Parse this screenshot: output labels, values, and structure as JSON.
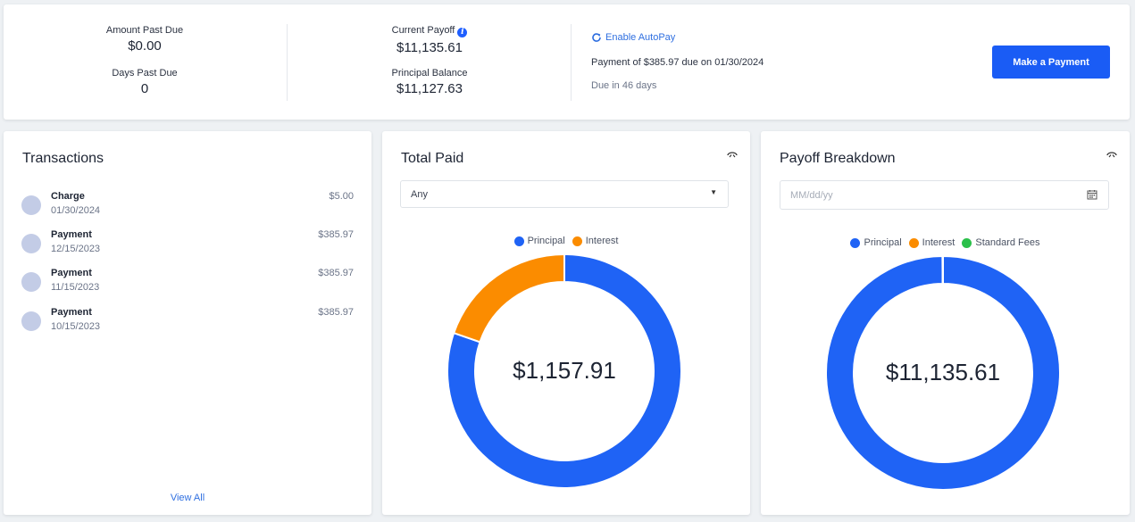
{
  "summary": {
    "amount_past_due_label": "Amount Past Due",
    "amount_past_due": "$0.00",
    "days_past_due_label": "Days Past Due",
    "days_past_due": "0",
    "current_payoff_label": "Current Payoff",
    "current_payoff": "$11,135.61",
    "principal_balance_label": "Principal Balance",
    "principal_balance": "$11,127.63",
    "autopay_label": "Enable AutoPay",
    "payment_note": "Payment of $385.97 due on 01/30/2024",
    "due_in": "Due in 46 days",
    "make_payment_label": "Make a Payment"
  },
  "transactions": {
    "title": "Transactions",
    "items": [
      {
        "type": "Charge",
        "date": "01/30/2024",
        "amount": "$5.00"
      },
      {
        "type": "Payment",
        "date": "12/15/2023",
        "amount": "$385.97"
      },
      {
        "type": "Payment",
        "date": "11/15/2023",
        "amount": "$385.97"
      },
      {
        "type": "Payment",
        "date": "10/15/2023",
        "amount": "$385.97"
      }
    ],
    "view_all_label": "View All"
  },
  "total_paid": {
    "title": "Total Paid",
    "filter_value": "Any",
    "center_label": "$1,157.91",
    "legend": [
      {
        "name": "Principal",
        "color": "#1f63f5"
      },
      {
        "name": "Interest",
        "color": "#fb8c00"
      }
    ],
    "slices": [
      {
        "name": "Principal",
        "value": 0.803,
        "color": "#1f63f5"
      },
      {
        "name": "Interest",
        "value": 0.197,
        "color": "#fb8c00"
      }
    ]
  },
  "payoff_breakdown": {
    "title": "Payoff Breakdown",
    "date_placeholder": "MM/dd/yy",
    "center_label": "$11,135.61",
    "legend": [
      {
        "name": "Principal",
        "color": "#1f63f5"
      },
      {
        "name": "Interest",
        "color": "#fb8c00"
      },
      {
        "name": "Standard Fees",
        "color": "#2bc04a"
      }
    ],
    "slices": [
      {
        "name": "Principal",
        "value": 0.9993,
        "color": "#1f63f5"
      },
      {
        "name": "Interest",
        "value": 0.0007,
        "color": "#fb8c00"
      },
      {
        "name": "Standard Fees",
        "value": 0.0,
        "color": "#2bc04a"
      }
    ]
  },
  "icons": {
    "autopay": "refresh-icon",
    "info": "info-icon",
    "chart_toggle": "collapse-icon",
    "calendar": "calendar-icon",
    "dropdown": "caret-down-icon"
  }
}
